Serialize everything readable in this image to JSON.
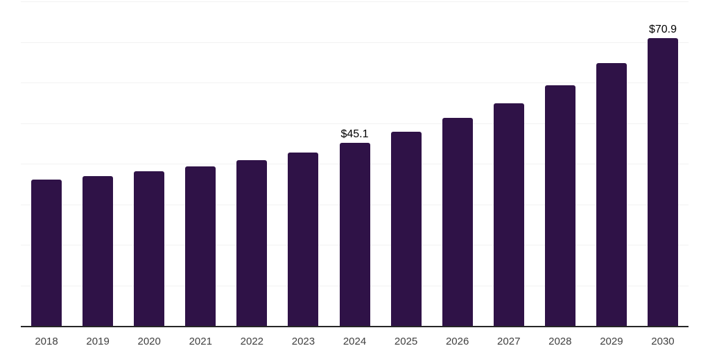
{
  "chart_data": {
    "type": "bar",
    "title": "",
    "categories": [
      "2018",
      "2019",
      "2020",
      "2021",
      "2022",
      "2023",
      "2024",
      "2025",
      "2026",
      "2027",
      "2028",
      "2029",
      "2030"
    ],
    "values": [
      36.0,
      37.0,
      38.1,
      39.3,
      40.9,
      42.8,
      45.1,
      47.9,
      51.2,
      54.9,
      59.3,
      64.8,
      70.9
    ],
    "point_labels": [
      "",
      "",
      "",
      "",
      "",
      "",
      "$45.1",
      "",
      "",
      "",
      "",
      "",
      "$70.9"
    ],
    "xlabel": "",
    "ylabel": "",
    "ylim": [
      0,
      80
    ],
    "grid_step": 10,
    "grid": true,
    "y_tick_labels_visible": false,
    "legend": "none",
    "colors": {
      "bar": "#2f1247",
      "point_label": "#000000",
      "x_tick_label": "#404040",
      "gridline": "#f2f2f2",
      "axis_line": "#262626",
      "background": "#ffffff"
    }
  }
}
